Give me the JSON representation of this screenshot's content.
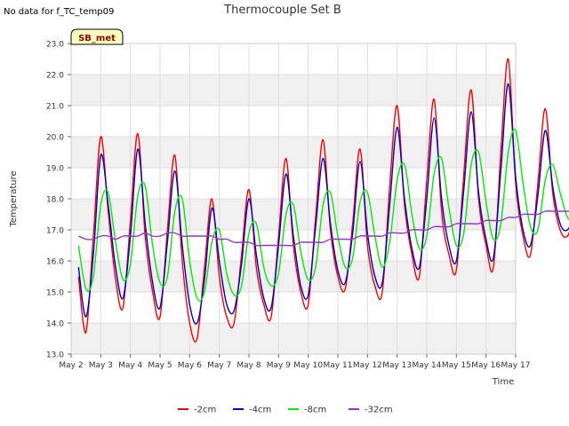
{
  "notice": "No data for f_TC_temp09",
  "chart_data": {
    "type": "line",
    "title": "Thermocouple Set B",
    "xlabel": "Time",
    "ylabel": "Temperature",
    "badge": "SB_met",
    "ylim": [
      13.0,
      23.0
    ],
    "yticks": [
      "13.0",
      "14.0",
      "15.0",
      "16.0",
      "17.0",
      "18.0",
      "19.0",
      "20.0",
      "21.0",
      "22.0",
      "23.0"
    ],
    "xlim": [
      "2024-05-02",
      "2024-05-17"
    ],
    "xticks": [
      "May 2",
      "May 3",
      "May 4",
      "May 5",
      "May 6",
      "May 7",
      "May 8",
      "May 9",
      "May 10",
      "May 11",
      "May 12",
      "May 13",
      "May 14",
      "May 15",
      "May 16",
      "May 17"
    ],
    "grid": true,
    "legend_position": "bottom",
    "x_start": "2024-05-02 06:00",
    "x_step_days": 0.25,
    "series": [
      {
        "name": "-2cm",
        "color": "#ff0000",
        "values": [
          15.5,
          13.7,
          16.8,
          20.0,
          17.6,
          15.4,
          14.5,
          17.3,
          20.1,
          16.8,
          15.0,
          14.2,
          17.0,
          19.4,
          16.0,
          14.0,
          13.5,
          15.8,
          18.0,
          15.5,
          14.2,
          14.0,
          16.2,
          18.3,
          15.8,
          14.6,
          14.2,
          16.8,
          19.3,
          16.5,
          15.0,
          14.6,
          17.4,
          19.9,
          17.0,
          15.5,
          15.1,
          17.2,
          19.6,
          16.5,
          15.2,
          15.0,
          18.4,
          21.0,
          17.8,
          16.2,
          15.5,
          18.6,
          21.2,
          17.6,
          16.2,
          15.7,
          18.8,
          21.5,
          18.0,
          16.5,
          15.8,
          19.5,
          22.5,
          18.5,
          16.8,
          16.2,
          18.5,
          20.9,
          18.2,
          17.0,
          16.8,
          17.5,
          18.0,
          17.4,
          16.9
        ]
      },
      {
        "name": "-4cm",
        "color": "#0000cc",
        "values": [
          15.8,
          14.2,
          16.2,
          19.4,
          17.8,
          15.8,
          14.8,
          16.8,
          19.6,
          17.2,
          15.3,
          14.5,
          16.6,
          18.9,
          16.5,
          14.6,
          14.0,
          15.4,
          17.7,
          16.0,
          14.6,
          14.4,
          15.9,
          18.0,
          16.2,
          14.8,
          14.5,
          16.5,
          18.8,
          16.8,
          15.2,
          14.9,
          17.1,
          19.3,
          17.2,
          15.7,
          15.3,
          16.9,
          19.2,
          16.9,
          15.5,
          15.3,
          17.8,
          20.3,
          18.0,
          16.4,
          15.8,
          18.0,
          20.6,
          18.0,
          16.5,
          16.0,
          18.3,
          20.8,
          18.2,
          16.7,
          16.1,
          18.9,
          21.7,
          18.7,
          17.0,
          16.5,
          18.1,
          20.2,
          18.4,
          17.2,
          17.0,
          17.5,
          17.9,
          17.4,
          17.1
        ]
      },
      {
        "name": "-8cm",
        "color": "#00ee00",
        "values": [
          16.5,
          15.1,
          15.5,
          17.8,
          18.2,
          16.6,
          15.4,
          15.9,
          18.1,
          18.4,
          16.5,
          15.3,
          15.5,
          17.6,
          18.0,
          16.0,
          14.8,
          15.0,
          16.6,
          17.0,
          15.6,
          14.9,
          15.2,
          16.9,
          17.2,
          15.8,
          15.2,
          15.6,
          17.5,
          17.8,
          16.3,
          15.4,
          15.8,
          17.8,
          18.2,
          16.8,
          15.8,
          16.1,
          17.9,
          18.2,
          16.8,
          15.8,
          16.6,
          18.6,
          19.1,
          17.5,
          16.4,
          16.8,
          18.8,
          19.3,
          17.7,
          16.5,
          16.9,
          19.1,
          19.5,
          17.9,
          16.7,
          17.2,
          19.5,
          20.2,
          18.5,
          17.1,
          17.0,
          18.6,
          19.1,
          18.2,
          17.4,
          17.4,
          17.8,
          17.6,
          17.1
        ]
      },
      {
        "name": "-32cm",
        "color": "#9933cc",
        "values": [
          16.8,
          16.7,
          16.7,
          16.8,
          16.8,
          16.7,
          16.8,
          16.8,
          16.8,
          16.9,
          16.8,
          16.8,
          16.9,
          16.9,
          16.8,
          16.8,
          16.8,
          16.8,
          16.8,
          16.7,
          16.7,
          16.6,
          16.6,
          16.6,
          16.5,
          16.5,
          16.5,
          16.5,
          16.5,
          16.5,
          16.6,
          16.6,
          16.6,
          16.6,
          16.7,
          16.7,
          16.7,
          16.7,
          16.8,
          16.8,
          16.8,
          16.8,
          16.9,
          16.9,
          16.9,
          17.0,
          17.0,
          17.0,
          17.1,
          17.1,
          17.1,
          17.2,
          17.2,
          17.2,
          17.2,
          17.3,
          17.3,
          17.3,
          17.4,
          17.4,
          17.5,
          17.5,
          17.5,
          17.6,
          17.6,
          17.6,
          17.6,
          17.6,
          17.7,
          17.6,
          17.6
        ]
      }
    ]
  }
}
